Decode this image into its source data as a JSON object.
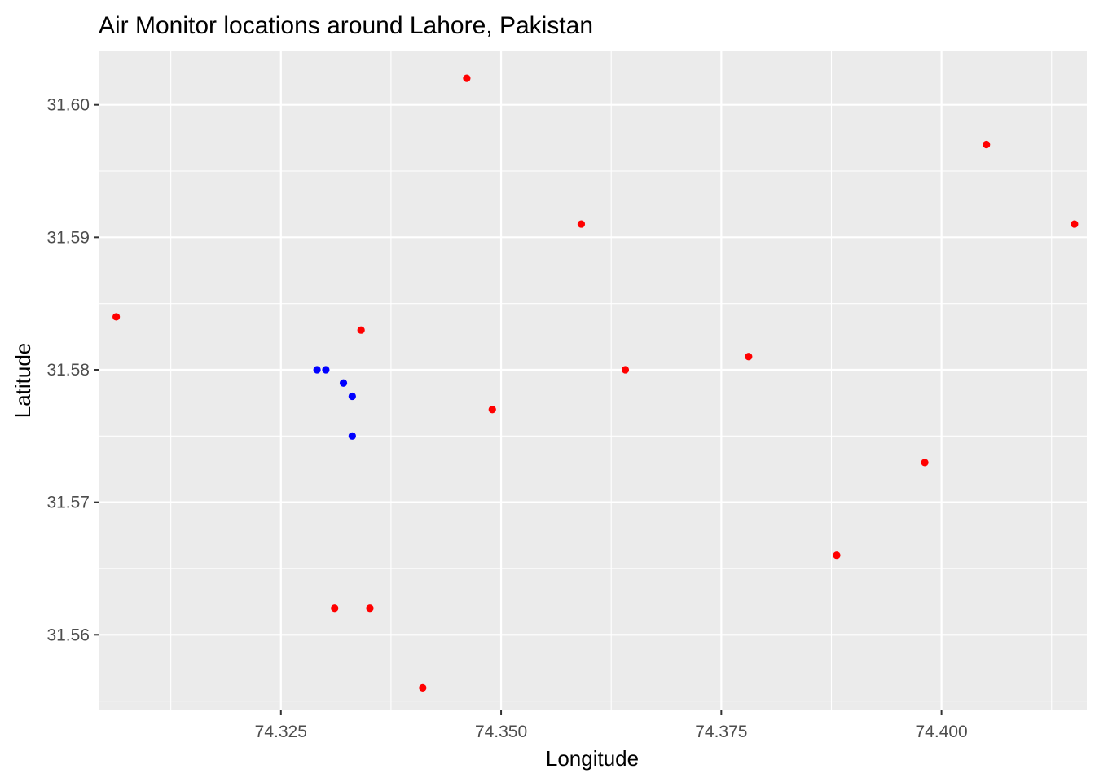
{
  "chart_data": {
    "type": "scatter",
    "title": "Air Monitor locations around Lahore, Pakistan",
    "xlabel": "Longitude",
    "ylabel": "Latitude",
    "xlim": [
      74.3043,
      74.4165
    ],
    "ylim": [
      31.5543,
      31.6041
    ],
    "xticks": [
      74.325,
      74.35,
      74.375,
      74.4
    ],
    "xtick_labels": [
      "74.325",
      "74.350",
      "74.375",
      "74.400"
    ],
    "yticks": [
      31.56,
      31.57,
      31.58,
      31.59,
      31.6
    ],
    "ytick_labels": [
      "31.56",
      "31.57",
      "31.58",
      "31.59",
      "31.60"
    ],
    "grid": true,
    "panel_background": "#ebebeb",
    "grid_color": "#ffffff",
    "series": [
      {
        "color": "#ff0000",
        "points": [
          {
            "x": 74.3063,
            "y": 31.584
          },
          {
            "x": 74.3341,
            "y": 31.583
          },
          {
            "x": 74.3461,
            "y": 31.602
          },
          {
            "x": 74.349,
            "y": 31.577
          },
          {
            "x": 74.3591,
            "y": 31.591
          },
          {
            "x": 74.3641,
            "y": 31.58
          },
          {
            "x": 74.3781,
            "y": 31.581
          },
          {
            "x": 74.3881,
            "y": 31.566
          },
          {
            "x": 74.3981,
            "y": 31.573
          },
          {
            "x": 74.4051,
            "y": 31.597
          },
          {
            "x": 74.4151,
            "y": 31.591
          },
          {
            "x": 74.3311,
            "y": 31.562
          },
          {
            "x": 74.3351,
            "y": 31.562
          },
          {
            "x": 74.3411,
            "y": 31.556
          }
        ]
      },
      {
        "color": "#0000ff",
        "points": [
          {
            "x": 74.3291,
            "y": 31.58
          },
          {
            "x": 74.3301,
            "y": 31.58
          },
          {
            "x": 74.3321,
            "y": 31.579
          },
          {
            "x": 74.3331,
            "y": 31.578
          },
          {
            "x": 74.3331,
            "y": 31.575
          }
        ]
      }
    ]
  }
}
